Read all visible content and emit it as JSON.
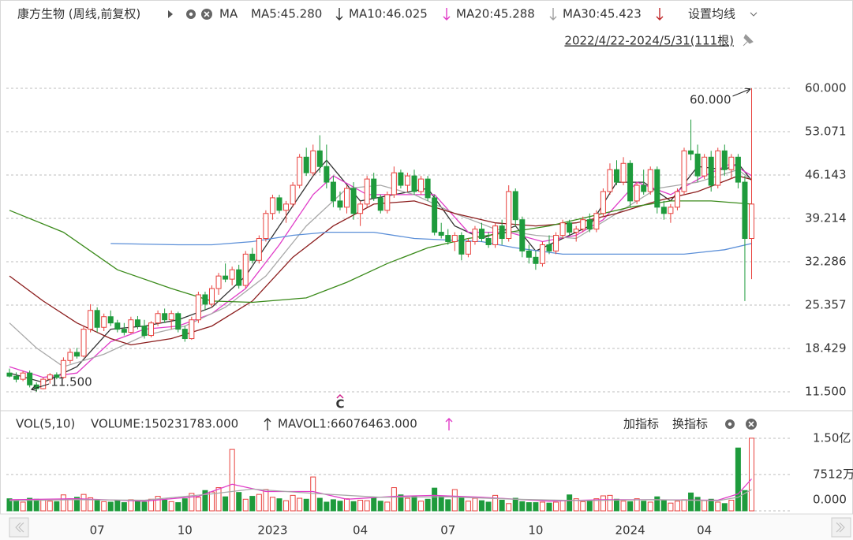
{
  "header": {
    "title": "康方生物 (周线,前复权)",
    "ma": "MA",
    "settings": "设置均线",
    "range": "2022/4/22-2024/5/31(111根)"
  },
  "chart_data": [
    {
      "type": "candlestick",
      "indicators": [
        {
          "label": "MA5:45.280",
          "color": "#333333"
        },
        {
          "label": "MA10:46.025",
          "color": "#e03cc8"
        },
        {
          "label": "MA20:45.288",
          "color": "#a0a0a0"
        },
        {
          "label": "MA30:45.423",
          "color": "#8b1c1c"
        }
      ],
      "up_color": "#e8413d",
      "down_color": "#1e9b3c",
      "grid": true,
      "ylim": [
        11.5,
        60
      ],
      "yticks": [
        {
          "value": 60,
          "label": "60.000"
        },
        {
          "value": 53.071,
          "label": "53.071"
        },
        {
          "value": 46.143,
          "label": "46.143"
        },
        {
          "value": 39.214,
          "label": "39.214"
        },
        {
          "value": 32.286,
          "label": "32.286"
        },
        {
          "value": 25.357,
          "label": "25.357"
        },
        {
          "value": 18.429,
          "label": "18.429"
        },
        {
          "value": 11.5,
          "label": "11.500"
        }
      ],
      "xticks": [
        {
          "value": 13,
          "label": "07"
        },
        {
          "value": 26,
          "label": "10"
        },
        {
          "value": 39,
          "label": "2023"
        },
        {
          "value": 52,
          "label": "04"
        },
        {
          "value": 65,
          "label": "07"
        },
        {
          "value": 78,
          "label": "10"
        },
        {
          "value": 92,
          "label": "2024"
        },
        {
          "value": 103,
          "label": "04"
        }
      ],
      "candles": [
        [
          14.5,
          15.2,
          13.8,
          14.0
        ],
        [
          14.0,
          14.6,
          13.0,
          13.5
        ],
        [
          13.5,
          14.8,
          13.2,
          14.5
        ],
        [
          14.5,
          14.9,
          12.2,
          12.6
        ],
        [
          12.6,
          13.0,
          11.5,
          12.0
        ],
        [
          12.0,
          13.8,
          11.9,
          13.5
        ],
        [
          13.5,
          14.5,
          12.8,
          14.2
        ],
        [
          14.2,
          14.6,
          13.5,
          13.8
        ],
        [
          13.8,
          17.0,
          13.6,
          16.5
        ],
        [
          16.5,
          18.4,
          16.0,
          17.8
        ],
        [
          17.8,
          18.5,
          16.8,
          17.2
        ],
        [
          17.2,
          22.0,
          17.0,
          21.5
        ],
        [
          21.5,
          25.5,
          21.0,
          24.5
        ],
        [
          24.5,
          25.0,
          21.0,
          21.8
        ],
        [
          21.8,
          24.0,
          21.2,
          23.5
        ],
        [
          23.5,
          24.5,
          22.0,
          22.5
        ],
        [
          22.5,
          23.0,
          21.0,
          21.5
        ],
        [
          21.5,
          22.5,
          20.5,
          21.0
        ],
        [
          21.0,
          23.5,
          20.8,
          23.0
        ],
        [
          23.0,
          23.6,
          21.5,
          22.0
        ],
        [
          22.0,
          23.0,
          20.0,
          20.5
        ],
        [
          20.5,
          22.8,
          20.2,
          22.5
        ],
        [
          22.5,
          24.5,
          22.0,
          24.0
        ],
        [
          24.0,
          24.8,
          22.5,
          23.0
        ],
        [
          23.0,
          24.5,
          21.5,
          24.0
        ],
        [
          24.0,
          24.3,
          21.0,
          21.5
        ],
        [
          21.5,
          22.0,
          19.5,
          20.0
        ],
        [
          20.0,
          23.5,
          19.8,
          23.0
        ],
        [
          23.0,
          27.5,
          22.5,
          27.0
        ],
        [
          27.0,
          27.5,
          24.5,
          25.5
        ],
        [
          25.5,
          28.5,
          25.0,
          28.0
        ],
        [
          28.0,
          30.5,
          27.0,
          30.0
        ],
        [
          30.0,
          32.0,
          29.0,
          29.5
        ],
        [
          29.5,
          31.5,
          28.5,
          31.0
        ],
        [
          31.0,
          31.8,
          28.0,
          28.5
        ],
        [
          28.5,
          34.0,
          28.0,
          33.5
        ],
        [
          33.5,
          34.5,
          32.0,
          32.5
        ],
        [
          32.5,
          36.5,
          32.0,
          36.0
        ],
        [
          36.0,
          40.5,
          35.5,
          40.0
        ],
        [
          40.0,
          43.0,
          39.0,
          42.5
        ],
        [
          42.5,
          43.0,
          40.0,
          40.5
        ],
        [
          40.5,
          42.0,
          38.5,
          41.5
        ],
        [
          41.5,
          45.0,
          41.0,
          44.5
        ],
        [
          44.5,
          49.5,
          44.0,
          49.0
        ],
        [
          49.0,
          50.5,
          46.0,
          46.5
        ],
        [
          46.5,
          51.0,
          46.0,
          50.0
        ],
        [
          50.0,
          52.5,
          46.5,
          47.5
        ],
        [
          47.5,
          51.0,
          44.0,
          45.0
        ],
        [
          45.0,
          46.0,
          41.0,
          42.0
        ],
        [
          42.0,
          43.5,
          40.5,
          41.0
        ],
        [
          41.0,
          44.5,
          40.0,
          44.0
        ],
        [
          44.0,
          45.0,
          39.0,
          40.0
        ],
        [
          40.0,
          42.0,
          38.0,
          41.5
        ],
        [
          41.5,
          46.0,
          41.0,
          45.5
        ],
        [
          45.5,
          46.5,
          42.0,
          42.5
        ],
        [
          42.5,
          43.0,
          40.0,
          40.5
        ],
        [
          40.5,
          43.5,
          40.0,
          43.0
        ],
        [
          43.0,
          47.5,
          42.5,
          46.5
        ],
        [
          46.5,
          47.0,
          44.0,
          44.5
        ],
        [
          44.5,
          46.5,
          43.5,
          46.0
        ],
        [
          46.0,
          47.0,
          43.0,
          43.5
        ],
        [
          43.5,
          46.0,
          43.0,
          45.5
        ],
        [
          45.5,
          46.0,
          42.0,
          42.5
        ],
        [
          42.5,
          43.0,
          36.5,
          37.0
        ],
        [
          37.0,
          38.5,
          36.0,
          36.5
        ],
        [
          36.5,
          37.5,
          35.0,
          35.5
        ],
        [
          35.5,
          37.0,
          34.0,
          36.5
        ],
        [
          36.5,
          37.0,
          32.5,
          33.5
        ],
        [
          33.5,
          36.0,
          33.0,
          35.5
        ],
        [
          35.5,
          38.0,
          35.0,
          37.5
        ],
        [
          37.5,
          38.5,
          35.5,
          36.0
        ],
        [
          36.0,
          37.0,
          34.5,
          35.0
        ],
        [
          35.0,
          38.5,
          34.5,
          38.0
        ],
        [
          38.0,
          39.0,
          35.0,
          36.0
        ],
        [
          36.0,
          44.5,
          35.5,
          43.5
        ],
        [
          43.5,
          44.0,
          38.0,
          39.0
        ],
        [
          39.0,
          39.5,
          33.0,
          34.0
        ],
        [
          34.0,
          35.0,
          32.0,
          33.0
        ],
        [
          33.0,
          34.0,
          31.0,
          32.0
        ],
        [
          32.0,
          35.5,
          31.5,
          35.0
        ],
        [
          35.0,
          36.5,
          33.5,
          34.0
        ],
        [
          34.0,
          37.0,
          33.5,
          36.5
        ],
        [
          36.5,
          39.0,
          36.0,
          38.5
        ],
        [
          38.5,
          39.0,
          36.5,
          37.0
        ],
        [
          37.0,
          38.0,
          35.5,
          37.5
        ],
        [
          37.5,
          39.5,
          37.0,
          39.0
        ],
        [
          39.0,
          40.0,
          37.0,
          37.5
        ],
        [
          37.5,
          40.5,
          37.0,
          40.0
        ],
        [
          40.0,
          44.0,
          39.5,
          43.5
        ],
        [
          43.5,
          48.0,
          43.0,
          47.0
        ],
        [
          47.0,
          48.5,
          44.5,
          45.0
        ],
        [
          45.0,
          49.0,
          44.5,
          48.0
        ],
        [
          48.0,
          48.5,
          41.0,
          42.0
        ],
        [
          42.0,
          45.0,
          41.5,
          44.5
        ],
        [
          44.5,
          47.0,
          43.0,
          43.5
        ],
        [
          43.5,
          47.5,
          43.0,
          47.0
        ],
        [
          47.0,
          47.5,
          40.0,
          41.0
        ],
        [
          41.0,
          42.0,
          39.0,
          40.0
        ],
        [
          40.0,
          41.5,
          38.5,
          41.0
        ],
        [
          41.0,
          44.0,
          40.5,
          43.5
        ],
        [
          43.5,
          50.5,
          43.0,
          50.0
        ],
        [
          50.0,
          55.0,
          48.5,
          49.5
        ],
        [
          49.5,
          51.0,
          45.0,
          46.0
        ],
        [
          46.0,
          49.5,
          45.5,
          49.0
        ],
        [
          49.0,
          50.0,
          43.5,
          44.5
        ],
        [
          44.5,
          50.5,
          44.0,
          50.0
        ],
        [
          50.0,
          51.0,
          46.0,
          47.0
        ],
        [
          47.0,
          49.5,
          45.5,
          49.0
        ],
        [
          49.0,
          49.5,
          44.0,
          45.0
        ],
        [
          45.0,
          46.0,
          26.0,
          36.0
        ],
        [
          36.0,
          60.0,
          29.5,
          41.5
        ]
      ],
      "lines": [
        {
          "color": "#333333",
          "x": [
            0,
            5,
            10,
            15,
            20,
            25,
            30,
            35,
            40,
            45,
            47,
            52,
            57,
            62,
            66,
            70,
            75,
            78,
            82,
            86,
            90,
            94,
            98,
            102,
            106,
            108,
            110
          ],
          "values": [
            14.5,
            13,
            15.5,
            21.5,
            22,
            23,
            25,
            30,
            38,
            46,
            48.5,
            42,
            43,
            44,
            38,
            36,
            38,
            34,
            36,
            38,
            45,
            45,
            42,
            47.5,
            47,
            48,
            45.28
          ]
        },
        {
          "color": "#e03cc8",
          "x": [
            0,
            5,
            10,
            15,
            20,
            25,
            30,
            35,
            40,
            45,
            48,
            53,
            58,
            63,
            68,
            74,
            79,
            84,
            88,
            93,
            98,
            103,
            107,
            110
          ],
          "values": [
            15.5,
            13.8,
            14.5,
            19.5,
            21.5,
            22,
            24,
            28,
            35,
            43,
            46,
            43,
            43,
            43,
            37,
            37,
            35.5,
            36.5,
            39,
            45,
            43,
            46,
            48,
            46.025
          ]
        },
        {
          "color": "#a8a8a8",
          "x": [
            0,
            4,
            8,
            14,
            20,
            26,
            32,
            38,
            44,
            50,
            55,
            60,
            66,
            72,
            78,
            84,
            90,
            96,
            102,
            108,
            110
          ],
          "values": [
            22.5,
            18.5,
            15.5,
            17.5,
            20.5,
            22,
            25,
            30,
            38,
            44,
            44.5,
            43,
            40,
            37.5,
            36.5,
            36,
            40,
            44,
            45,
            47,
            45.288
          ]
        },
        {
          "color": "#8b1c1c",
          "x": [
            0,
            5,
            10,
            15,
            18,
            24,
            30,
            36,
            42,
            48,
            54,
            60,
            66,
            72,
            78,
            84,
            90,
            96,
            102,
            108,
            110
          ],
          "values": [
            30,
            26,
            22.5,
            20,
            19,
            20,
            22,
            26,
            33,
            38,
            41.5,
            42,
            40,
            38.5,
            38,
            38.5,
            40,
            42,
            43.5,
            46,
            45.423
          ]
        },
        {
          "color": "#3a8a1a",
          "x": [
            0,
            8,
            16,
            24,
            30,
            36,
            44,
            50,
            56,
            62,
            68,
            74,
            80,
            86,
            92,
            98,
            104,
            110
          ],
          "values": [
            40.5,
            37,
            31,
            28,
            26,
            25.8,
            26.5,
            29,
            32,
            34.5,
            36,
            37,
            38,
            39.5,
            41,
            42,
            42,
            41.5
          ]
        },
        {
          "color": "#5b8fd8",
          "x": [
            15,
            25,
            30,
            36,
            42,
            47,
            54,
            60,
            70,
            75,
            82,
            90,
            100,
            106,
            110
          ],
          "values": [
            35.2,
            35,
            35,
            35.5,
            36.5,
            37,
            37,
            36,
            35.5,
            34.5,
            33.5,
            33.5,
            33.5,
            34.2,
            35.2
          ]
        }
      ],
      "annotations": [
        {
          "x": 110,
          "value": 60,
          "label": "60.000"
        },
        {
          "x": 4,
          "value": 11.5,
          "label": "11.500"
        }
      ],
      "marker": {
        "x": 49,
        "label": "C"
      }
    },
    {
      "type": "bar",
      "indicators": [
        {
          "label": "VOL(5,10)",
          "color": "#333333"
        },
        {
          "label": "VOLUME:150231783.000",
          "color": "#333333"
        },
        {
          "label": "MAVOL1:66076463.000",
          "color": "#e03cc8"
        }
      ],
      "buttons": [
        "加指标",
        "换指标"
      ],
      "ylim": [
        0,
        15000
      ],
      "yticks": [
        {
          "value": 15000,
          "label": "1.50亿"
        },
        {
          "value": 7512,
          "label": "7512万"
        },
        {
          "value": 0,
          "label": "0.000"
        }
      ],
      "values": [
        2500,
        2200,
        1800,
        2600,
        2400,
        2200,
        2000,
        1900,
        3300,
        2500,
        2800,
        3400,
        2700,
        2200,
        1900,
        1800,
        2100,
        1700,
        2300,
        2000,
        1800,
        2400,
        3000,
        2200,
        1900,
        1700,
        2500,
        3600,
        2800,
        4200,
        3900,
        4800,
        2900,
        12700,
        3800,
        2400,
        3000,
        3400,
        4400,
        2800,
        2500,
        2100,
        3200,
        2600,
        2400,
        7000,
        2600,
        1800,
        2300,
        2000,
        2500,
        1900,
        2200,
        2100,
        2700,
        2000,
        1800,
        4800,
        3300,
        2600,
        3000,
        2000,
        2400,
        4700,
        3000,
        2300,
        4400,
        2800,
        2000,
        2600,
        2100,
        1800,
        3200,
        2200,
        1500,
        2600,
        1900,
        1700,
        1700,
        1800,
        1600,
        1800,
        2200,
        3300,
        2500,
        1900,
        2100,
        2500,
        3100,
        3200,
        2400,
        2000,
        1900,
        2500,
        2000,
        1800,
        2900,
        2200,
        1600,
        2000,
        2300,
        3700,
        2800,
        2100,
        2400,
        1800,
        1500,
        2200,
        13000,
        4200,
        15023.1783
      ],
      "lines": [
        {
          "color": "#e03cc8",
          "x": [
            0,
            10,
            20,
            28,
            33,
            38,
            45,
            50,
            57,
            63,
            70,
            80,
            88,
            95,
            105,
            108,
            110
          ],
          "values": [
            2300,
            2500,
            2000,
            3000,
            5500,
            4000,
            4000,
            2400,
            3000,
            3200,
            2800,
            2000,
            2300,
            2300,
            2200,
            3500,
            6607.6463
          ]
        },
        {
          "color": "#a8a8a8",
          "x": [
            0,
            10,
            20,
            30,
            36,
            45,
            55,
            65,
            75,
            85,
            95,
            105,
            108,
            110
          ],
          "values": [
            2100,
            2300,
            2200,
            3500,
            4500,
            3600,
            2800,
            2900,
            2400,
            2100,
            2300,
            2100,
            2800,
            4400
          ]
        }
      ]
    }
  ]
}
